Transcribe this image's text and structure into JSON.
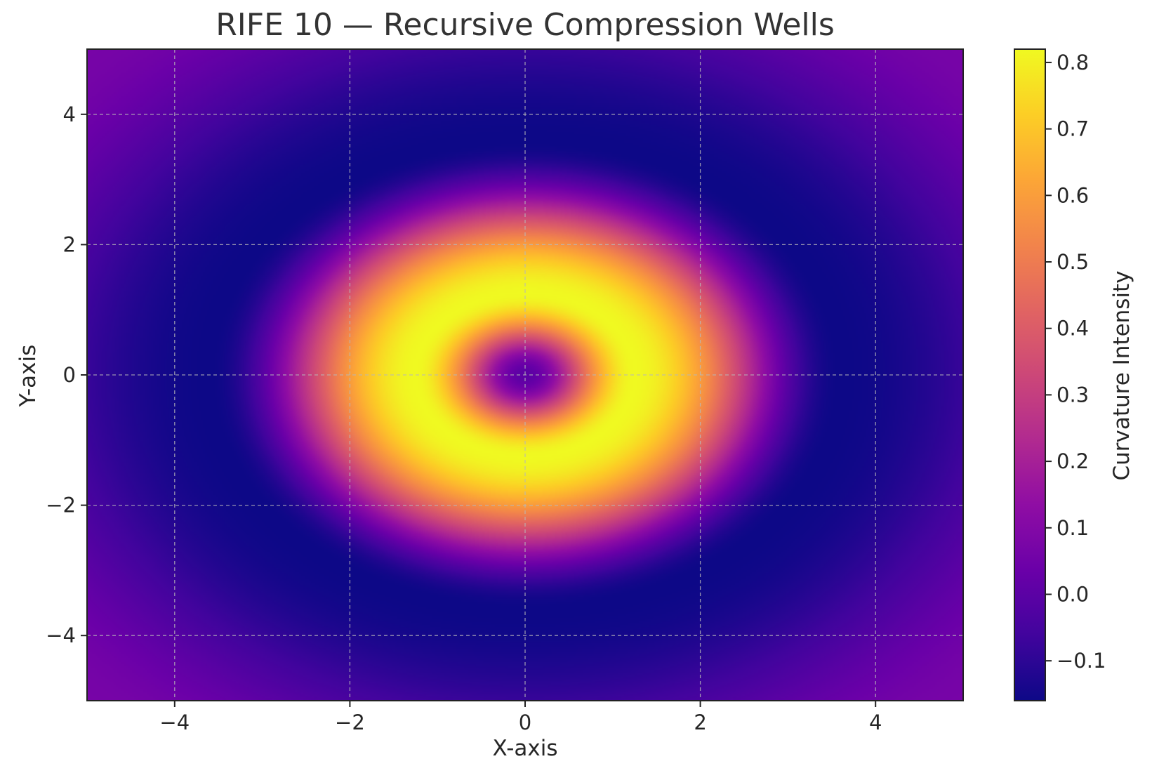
{
  "chart_data": {
    "type": "heatmap",
    "title": "RIFE 10 — Recursive Compression Wells",
    "xlabel": "X-axis",
    "ylabel": "Y-axis",
    "colorbar_label": "Curvature Intensity",
    "colormap": "plasma",
    "xlim": [
      -5,
      5
    ],
    "ylim": [
      -5,
      5
    ],
    "x_ticks": [
      -4,
      -2,
      0,
      2,
      4
    ],
    "y_ticks": [
      -4,
      -2,
      0,
      2,
      4
    ],
    "x_tick_labels": [
      "−4",
      "−2",
      "0",
      "2",
      "4"
    ],
    "y_tick_labels": [
      "−4",
      "−2",
      "0",
      "2",
      "4"
    ],
    "colorbar_range": [
      -0.16,
      0.82
    ],
    "colorbar_ticks": [
      -0.1,
      0.0,
      0.1,
      0.2,
      0.3,
      0.4,
      0.5,
      0.6,
      0.7,
      0.8
    ],
    "colorbar_tick_labels": [
      "−0.1",
      "0.0",
      "0.1",
      "0.2",
      "0.3",
      "0.4",
      "0.5",
      "0.6",
      "0.7",
      "0.8"
    ],
    "center_value": 0.0,
    "peak_value": 0.82,
    "peak_radius": 1.25,
    "trough_value": -0.16,
    "trough_radius": 3.6,
    "edge_value": 0.07,
    "grid": true
  }
}
